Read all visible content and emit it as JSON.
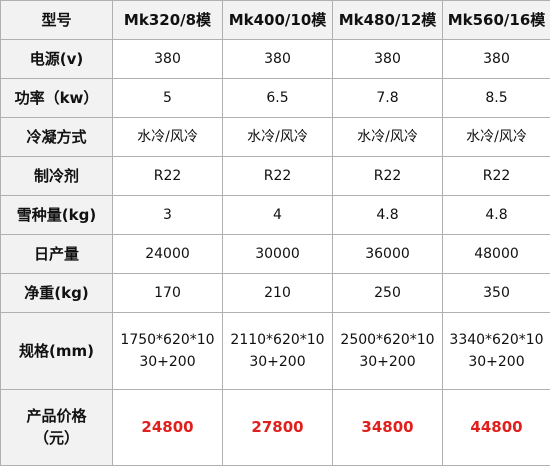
{
  "table": {
    "header": [
      "型号",
      "Mk320/8模",
      "Mk400/10模",
      "Mk480/12模",
      "Mk560/16模"
    ],
    "rows": [
      [
        "电源(v)",
        "380",
        "380",
        "380",
        "380"
      ],
      [
        "功率（kw）",
        "5",
        "6.5",
        "7.8",
        "8.5"
      ],
      [
        "冷凝方式",
        "水冷/风冷",
        "水冷/风冷",
        "水冷/风冷",
        "水冷/风冷"
      ],
      [
        "制冷剂",
        "R22",
        "R22",
        "R22",
        "R22"
      ],
      [
        "雪种量(kg)",
        "3",
        "4",
        "4.8",
        "4.8"
      ],
      [
        "日产量",
        "24000",
        "30000",
        "36000",
        "48000"
      ],
      [
        "净重(kg)",
        "170",
        "210",
        "250",
        "350"
      ],
      [
        "规格(mm)",
        "1750*620*10\n30+200",
        "2110*620*10\n30+200",
        "2500*620*10\n30+200",
        "3340*620*10\n30+200"
      ],
      [
        "产品价格\n（元）",
        "24800",
        "27800",
        "34800",
        "44800"
      ]
    ]
  }
}
